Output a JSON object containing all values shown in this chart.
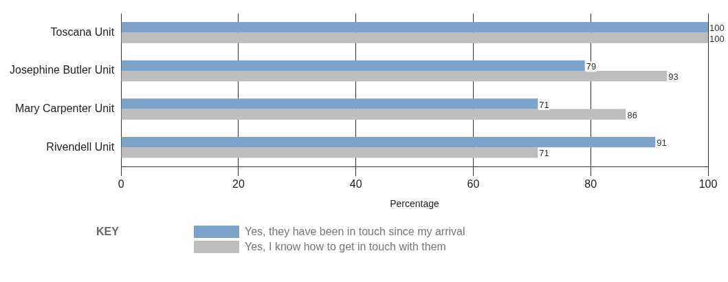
{
  "chart_data": {
    "type": "bar",
    "orientation": "horizontal",
    "xlabel": "Percentage",
    "legend_title": "KEY",
    "categories": [
      "Toscana Unit",
      "Josephine Butler Unit",
      "Mary Carpenter Unit",
      "Rivendell Unit"
    ],
    "series": [
      {
        "name": "Yes, they have been in touch since my arrival",
        "color": "#7fa3c8",
        "values": [
          100,
          79,
          71,
          91
        ]
      },
      {
        "name": "Yes, I know how to get in touch with them",
        "color": "#bdbdc0",
        "values": [
          100,
          93,
          86,
          71
        ]
      }
    ],
    "xlim": [
      0,
      100
    ],
    "xticks": [
      0,
      20,
      40,
      60,
      80,
      100
    ],
    "grid": "x",
    "data_labels": true,
    "legend": "bottom"
  }
}
